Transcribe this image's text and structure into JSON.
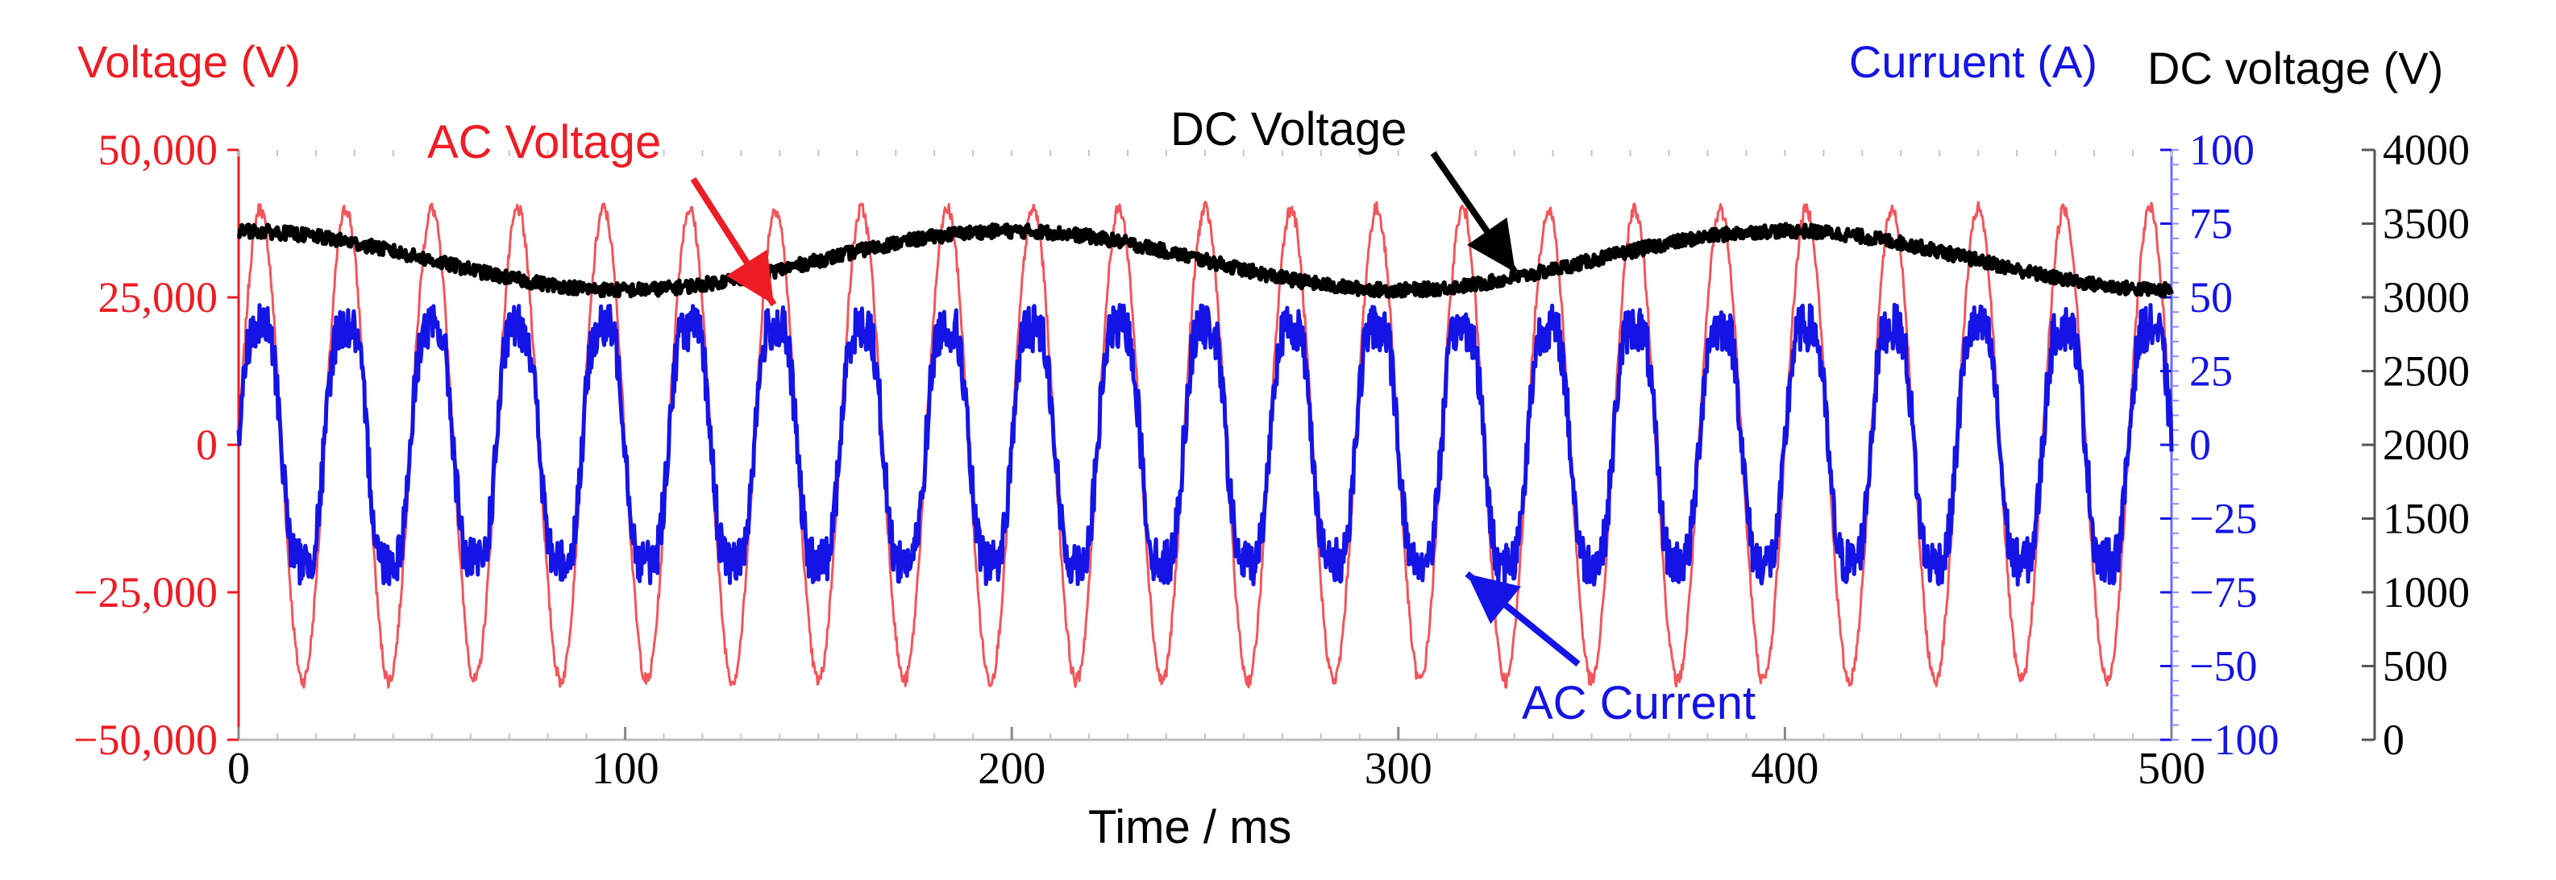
{
  "chart_data": {
    "type": "line",
    "xlabel": "Time / ms",
    "x_ticks": [
      0,
      100,
      200,
      300,
      400,
      500
    ],
    "xlim": [
      0,
      500
    ],
    "axes": {
      "left": {
        "label": "Voltage (V)",
        "color": "#ee1c24",
        "ylim": [
          -50000,
          50000
        ],
        "tick_labels": [
          "50,000",
          "25,000",
          "0",
          "−25,000",
          "−50,000"
        ]
      },
      "right_inner": {
        "label": "Curruent (A)",
        "color": "#1414e6",
        "ylim": [
          -100,
          100
        ],
        "tick_labels": [
          "100",
          "75",
          "50",
          "25",
          "0",
          "−25",
          "−75",
          "−50",
          "−100"
        ]
      },
      "right_outer": {
        "label": "DC voltage (V)",
        "color": "#000000",
        "ylim": [
          0,
          4000
        ],
        "tick_labels": [
          "4000",
          "3500",
          "3000",
          "2500",
          "2000",
          "1500",
          "1000",
          "500",
          "0"
        ]
      }
    },
    "series": [
      {
        "name": "AC Voltage",
        "axis": "left",
        "color": "#ee1c24",
        "frequency_hz": 45,
        "amplitude": 40000,
        "offset": 0,
        "unit": "V"
      },
      {
        "name": "AC Current",
        "axis": "right_inner",
        "color": "#1414e6",
        "frequency_hz": 45,
        "amplitude": 45,
        "offset": 0,
        "unit": "A"
      },
      {
        "name": "DC Voltage",
        "axis": "right_outer",
        "color": "#000000",
        "mean": 3250,
        "ripple_amplitude": 200,
        "ripple_frequency_hz": 5,
        "unit": "V"
      }
    ],
    "annotations": [
      {
        "text": "AC Voltage",
        "color": "#ee1c24",
        "points_to_ms": 145
      },
      {
        "text": "DC Voltage",
        "color": "#000000",
        "points_to_ms": 335
      },
      {
        "text": "AC Current",
        "color": "#1414e6",
        "points_to_ms": 318
      }
    ]
  }
}
